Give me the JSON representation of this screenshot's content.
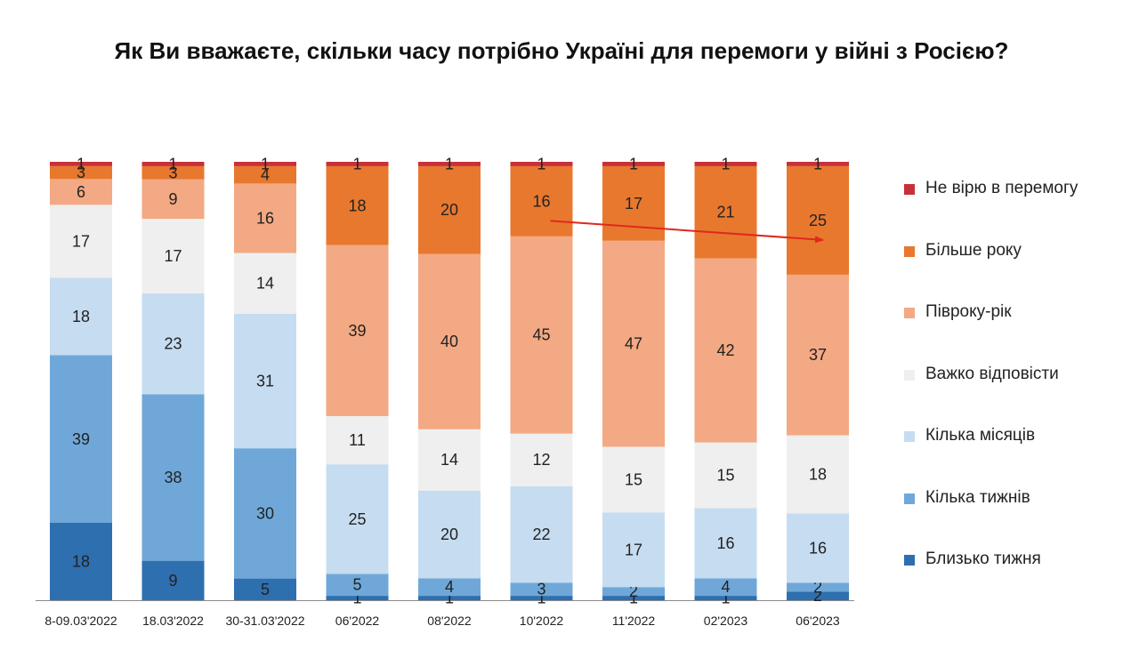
{
  "chart_data": {
    "type": "bar",
    "stacked": true,
    "percent": true,
    "title": "Як Ви вважаєте, скільки часу потрібно Україні для перемоги у війні з Росією?",
    "categories": [
      "8-09.03'2022",
      "18.03'2022",
      "30-31.03'2022",
      "06'2022",
      "08'2022",
      "10'2022",
      "11'2022",
      "02'2023",
      "06'2023"
    ],
    "series": [
      {
        "name": "Близько тижня",
        "color": "#2e6fb0",
        "values": [
          18,
          9,
          5,
          1,
          1,
          1,
          1,
          1,
          2
        ]
      },
      {
        "name": "Кілька тижнів",
        "color": "#6fa8d8",
        "values": [
          39,
          38,
          30,
          5,
          4,
          3,
          2,
          4,
          2
        ]
      },
      {
        "name": "Кілька місяців",
        "color": "#c6dcf1",
        "values": [
          18,
          23,
          31,
          25,
          20,
          22,
          17,
          16,
          16
        ]
      },
      {
        "name": "Важко відповісти",
        "color": "#eeefee",
        "values": [
          17,
          17,
          14,
          11,
          14,
          12,
          15,
          15,
          18
        ]
      },
      {
        "name": "Півроку-рік",
        "color": "#f3a983",
        "values": [
          6,
          9,
          16,
          39,
          40,
          45,
          47,
          42,
          37
        ]
      },
      {
        "name": "Більше року",
        "color": "#e8782e",
        "values": [
          3,
          3,
          4,
          18,
          20,
          16,
          17,
          21,
          25
        ]
      },
      {
        "name": "Не вірю в перемогу",
        "color": "#c8303a",
        "values": [
          1,
          1,
          1,
          1,
          1,
          1,
          1,
          1,
          1
        ]
      }
    ],
    "annotation": {
      "type": "arrow",
      "color": "#e0281e",
      "from_category": "10'2022",
      "to_category": "06'2023",
      "series": "Більше року"
    },
    "legend_position": "right",
    "legend_order": [
      "Не вірю в перемогу",
      "Більше року",
      "Півроку-рік",
      "Важко відповісти",
      "Кілька місяців",
      "Кілька тижнів",
      "Близько тижня"
    ],
    "grid": false,
    "ylim": [
      0,
      100
    ]
  }
}
